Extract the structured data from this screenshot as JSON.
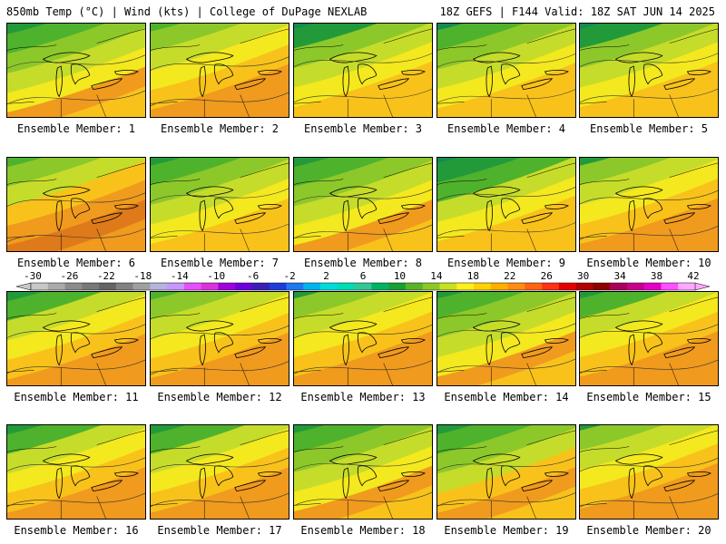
{
  "header": {
    "left": "850mb Temp (°C) | Wind (kts) | College of DuPage NEXLAB",
    "right": "18Z GEFS | F144 Valid: 18Z SAT JUN 14 2025"
  },
  "members": [
    {
      "label": "Ensemble Member: 1",
      "warm": 0.55,
      "cool": 0.35
    },
    {
      "label": "Ensemble Member: 2",
      "warm": 0.75,
      "cool": 0.45
    },
    {
      "label": "Ensemble Member: 3",
      "warm": 0.35,
      "cool": 0.55
    },
    {
      "label": "Ensemble Member: 4",
      "warm": 0.4,
      "cool": 0.5
    },
    {
      "label": "Ensemble Member: 5",
      "warm": 0.35,
      "cool": 0.55
    },
    {
      "label": "Ensemble Member: 6",
      "warm": 0.95,
      "cool": 0.4
    },
    {
      "label": "Ensemble Member: 7",
      "warm": 0.45,
      "cool": 0.45
    },
    {
      "label": "Ensemble Member: 8",
      "warm": 0.55,
      "cool": 0.4
    },
    {
      "label": "Ensemble Member: 9",
      "warm": 0.3,
      "cool": 0.55
    },
    {
      "label": "Ensemble Member: 10",
      "warm": 0.7,
      "cool": 0.45
    },
    {
      "label": "Ensemble Member: 11",
      "warm": 0.65,
      "cool": 0.4
    },
    {
      "label": "Ensemble Member: 12",
      "warm": 0.8,
      "cool": 0.45
    },
    {
      "label": "Ensemble Member: 13",
      "warm": 0.7,
      "cool": 0.5
    },
    {
      "label": "Ensemble Member: 14",
      "warm": 0.55,
      "cool": 0.5
    },
    {
      "label": "Ensemble Member: 15",
      "warm": 0.65,
      "cool": 0.5
    },
    {
      "label": "Ensemble Member: 16",
      "warm": 0.65,
      "cool": 0.4
    },
    {
      "label": "Ensemble Member: 17",
      "warm": 0.65,
      "cool": 0.4
    },
    {
      "label": "Ensemble Member: 18",
      "warm": 0.55,
      "cool": 0.45
    },
    {
      "label": "Ensemble Member: 19",
      "warm": 0.6,
      "cool": 0.4
    },
    {
      "label": "Ensemble Member: 20",
      "warm": 0.7,
      "cool": 0.55
    }
  ],
  "colorbar": {
    "labels": [
      "-30",
      "-26",
      "-22",
      "-18",
      "-14",
      "-10",
      "-6",
      "-2",
      "2",
      "6",
      "10",
      "14",
      "18",
      "22",
      "26",
      "30",
      "34",
      "38",
      "42"
    ],
    "colors": [
      "#c8c8c8",
      "#aaaaaa",
      "#8c8c8c",
      "#787878",
      "#646464",
      "#828282",
      "#a0a0a0",
      "#b4b4dc",
      "#c896ff",
      "#e650ff",
      "#dc32dc",
      "#a000dc",
      "#6e00dc",
      "#3c1eb4",
      "#1e3cdc",
      "#1e78f0",
      "#00b4f0",
      "#00dcdc",
      "#00dcb4",
      "#32c896",
      "#00b464",
      "#19a032",
      "#5ab428",
      "#8cc828",
      "#c8e11e",
      "#fff01e",
      "#ffd200",
      "#ffaf00",
      "#ff8c14",
      "#ff6414",
      "#ff3214",
      "#e60000",
      "#b40000",
      "#8c0000",
      "#aa005a",
      "#c8008c",
      "#e600c8",
      "#ff50ff",
      "#ffaaff"
    ]
  }
}
